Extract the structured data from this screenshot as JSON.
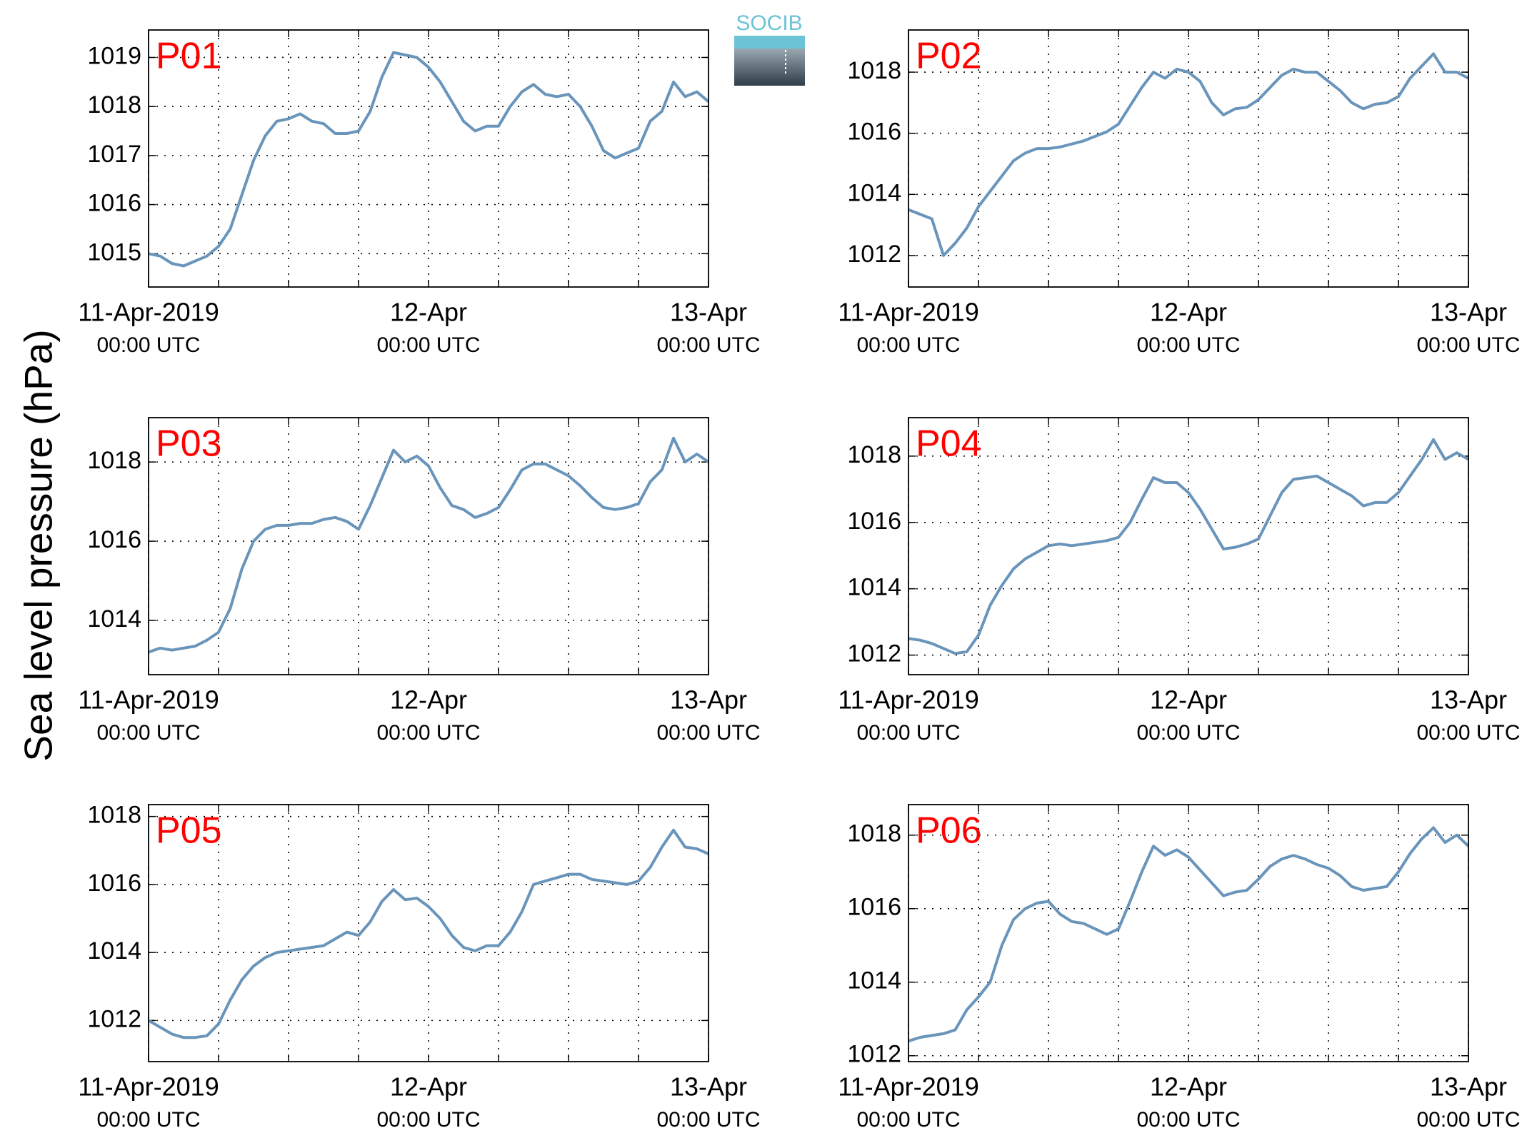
{
  "ylabel": "Sea level pressure (hPa)",
  "logo": "SOCIB",
  "chart_data": [
    {
      "type": "line",
      "title": "P01",
      "color": "#6a95bb",
      "x": [
        "2019-04-11T00:00",
        "2019-04-11T01:00",
        "2019-04-11T02:00",
        "2019-04-11T03:00",
        "2019-04-11T04:00",
        "2019-04-11T05:00",
        "2019-04-11T06:00",
        "2019-04-11T07:00",
        "2019-04-11T08:00",
        "2019-04-11T09:00",
        "2019-04-11T10:00",
        "2019-04-11T11:00",
        "2019-04-11T12:00",
        "2019-04-11T13:00",
        "2019-04-11T14:00",
        "2019-04-11T15:00",
        "2019-04-11T16:00",
        "2019-04-11T17:00",
        "2019-04-11T18:00",
        "2019-04-11T19:00",
        "2019-04-11T20:00",
        "2019-04-11T21:00",
        "2019-04-11T22:00",
        "2019-04-11T23:00",
        "2019-04-12T00:00",
        "2019-04-12T01:00",
        "2019-04-12T02:00",
        "2019-04-12T03:00",
        "2019-04-12T04:00",
        "2019-04-12T05:00",
        "2019-04-12T06:00",
        "2019-04-12T07:00",
        "2019-04-12T08:00",
        "2019-04-12T09:00",
        "2019-04-12T10:00",
        "2019-04-12T11:00",
        "2019-04-12T12:00",
        "2019-04-12T13:00",
        "2019-04-12T14:00",
        "2019-04-12T15:00",
        "2019-04-12T16:00",
        "2019-04-12T17:00",
        "2019-04-12T18:00",
        "2019-04-12T19:00",
        "2019-04-12T20:00",
        "2019-04-12T21:00",
        "2019-04-12T22:00",
        "2019-04-12T23:00",
        "2019-04-13T00:00"
      ],
      "values": [
        1015.0,
        1014.95,
        1014.8,
        1014.75,
        1014.85,
        1014.95,
        1015.15,
        1015.5,
        1016.2,
        1016.9,
        1017.4,
        1017.7,
        1017.75,
        1017.85,
        1017.7,
        1017.65,
        1017.45,
        1017.45,
        1017.5,
        1017.9,
        1018.6,
        1019.1,
        1019.05,
        1019.0,
        1018.8,
        1018.5,
        1018.1,
        1017.7,
        1017.5,
        1017.6,
        1017.6,
        1018.0,
        1018.3,
        1018.45,
        1018.25,
        1018.2,
        1018.25,
        1018.0,
        1017.6,
        1017.1,
        1016.95,
        1017.05,
        1017.15,
        1017.7,
        1017.9,
        1018.5,
        1018.2,
        1018.3,
        1018.1
      ],
      "xlim": [
        "2019-04-11T00:00",
        "2019-04-13T00:00"
      ],
      "xticks": [
        {
          "value": "2019-04-11T00:00",
          "label": "11-Apr-2019",
          "sublabel": "00:00 UTC"
        },
        {
          "value": "2019-04-12T00:00",
          "label": "12-Apr",
          "sublabel": "00:00 UTC"
        },
        {
          "value": "2019-04-13T00:00",
          "label": "13-Apr",
          "sublabel": "00:00 UTC"
        }
      ],
      "xminorticks": [
        "2019-04-11T06:00",
        "2019-04-11T12:00",
        "2019-04-11T18:00",
        "2019-04-12T06:00",
        "2019-04-12T12:00",
        "2019-04-12T18:00"
      ],
      "ylim": [
        1014.32,
        1019.56
      ],
      "yticks": [
        1015,
        1016,
        1017,
        1018,
        1019
      ],
      "grid": true
    },
    {
      "type": "line",
      "title": "P02",
      "color": "#6a95bb",
      "x": [
        "2019-04-11T00:00",
        "2019-04-11T01:00",
        "2019-04-11T02:00",
        "2019-04-11T03:00",
        "2019-04-11T04:00",
        "2019-04-11T05:00",
        "2019-04-11T06:00",
        "2019-04-11T07:00",
        "2019-04-11T08:00",
        "2019-04-11T09:00",
        "2019-04-11T10:00",
        "2019-04-11T11:00",
        "2019-04-11T12:00",
        "2019-04-11T13:00",
        "2019-04-11T14:00",
        "2019-04-11T15:00",
        "2019-04-11T16:00",
        "2019-04-11T17:00",
        "2019-04-11T18:00",
        "2019-04-11T19:00",
        "2019-04-11T20:00",
        "2019-04-11T21:00",
        "2019-04-11T22:00",
        "2019-04-11T23:00",
        "2019-04-12T00:00",
        "2019-04-12T01:00",
        "2019-04-12T02:00",
        "2019-04-12T03:00",
        "2019-04-12T04:00",
        "2019-04-12T05:00",
        "2019-04-12T06:00",
        "2019-04-12T07:00",
        "2019-04-12T08:00",
        "2019-04-12T09:00",
        "2019-04-12T10:00",
        "2019-04-12T11:00",
        "2019-04-12T12:00",
        "2019-04-12T13:00",
        "2019-04-12T14:00",
        "2019-04-12T15:00",
        "2019-04-12T16:00",
        "2019-04-12T17:00",
        "2019-04-12T18:00",
        "2019-04-12T19:00",
        "2019-04-12T20:00",
        "2019-04-12T21:00",
        "2019-04-12T22:00",
        "2019-04-12T23:00",
        "2019-04-13T00:00"
      ],
      "values": [
        1013.5,
        1013.35,
        1013.2,
        1012.0,
        1012.4,
        1012.9,
        1013.6,
        1014.1,
        1014.6,
        1015.1,
        1015.35,
        1015.5,
        1015.5,
        1015.55,
        1015.65,
        1015.75,
        1015.9,
        1016.05,
        1016.3,
        1016.9,
        1017.5,
        1018.0,
        1017.8,
        1018.1,
        1018.0,
        1017.7,
        1017.0,
        1016.6,
        1016.8,
        1016.85,
        1017.1,
        1017.5,
        1017.9,
        1018.1,
        1018.0,
        1018.0,
        1017.7,
        1017.4,
        1017.0,
        1016.8,
        1016.95,
        1017.0,
        1017.2,
        1017.8,
        1018.2,
        1018.6,
        1018.0,
        1018.0,
        1017.8
      ],
      "xlim": [
        "2019-04-11T00:00",
        "2019-04-13T00:00"
      ],
      "xticks": [
        {
          "value": "2019-04-11T00:00",
          "label": "11-Apr-2019",
          "sublabel": "00:00 UTC"
        },
        {
          "value": "2019-04-12T00:00",
          "label": "12-Apr",
          "sublabel": "00:00 UTC"
        },
        {
          "value": "2019-04-13T00:00",
          "label": "13-Apr",
          "sublabel": "00:00 UTC"
        }
      ],
      "xminorticks": [
        "2019-04-11T06:00",
        "2019-04-11T12:00",
        "2019-04-11T18:00",
        "2019-04-12T06:00",
        "2019-04-12T12:00",
        "2019-04-12T18:00"
      ],
      "ylim": [
        1010.97,
        1019.38
      ],
      "yticks": [
        1012,
        1014,
        1016,
        1018
      ],
      "grid": true
    },
    {
      "type": "line",
      "title": "P03",
      "color": "#6a95bb",
      "x": [
        "2019-04-11T00:00",
        "2019-04-11T01:00",
        "2019-04-11T02:00",
        "2019-04-11T03:00",
        "2019-04-11T04:00",
        "2019-04-11T05:00",
        "2019-04-11T06:00",
        "2019-04-11T07:00",
        "2019-04-11T08:00",
        "2019-04-11T09:00",
        "2019-04-11T10:00",
        "2019-04-11T11:00",
        "2019-04-11T12:00",
        "2019-04-11T13:00",
        "2019-04-11T14:00",
        "2019-04-11T15:00",
        "2019-04-11T16:00",
        "2019-04-11T17:00",
        "2019-04-11T18:00",
        "2019-04-11T19:00",
        "2019-04-11T20:00",
        "2019-04-11T21:00",
        "2019-04-11T22:00",
        "2019-04-11T23:00",
        "2019-04-12T00:00",
        "2019-04-12T01:00",
        "2019-04-12T02:00",
        "2019-04-12T03:00",
        "2019-04-12T04:00",
        "2019-04-12T05:00",
        "2019-04-12T06:00",
        "2019-04-12T07:00",
        "2019-04-12T08:00",
        "2019-04-12T09:00",
        "2019-04-12T10:00",
        "2019-04-12T11:00",
        "2019-04-12T12:00",
        "2019-04-12T13:00",
        "2019-04-12T14:00",
        "2019-04-12T15:00",
        "2019-04-12T16:00",
        "2019-04-12T17:00",
        "2019-04-12T18:00",
        "2019-04-12T19:00",
        "2019-04-12T20:00",
        "2019-04-12T21:00",
        "2019-04-12T22:00",
        "2019-04-12T23:00",
        "2019-04-13T00:00"
      ],
      "values": [
        1013.2,
        1013.3,
        1013.25,
        1013.3,
        1013.35,
        1013.5,
        1013.7,
        1014.3,
        1015.3,
        1016.0,
        1016.3,
        1016.4,
        1016.4,
        1016.45,
        1016.45,
        1016.55,
        1016.6,
        1016.5,
        1016.3,
        1016.9,
        1017.6,
        1018.3,
        1018.0,
        1018.15,
        1017.9,
        1017.35,
        1016.9,
        1016.8,
        1016.6,
        1016.7,
        1016.85,
        1017.3,
        1017.8,
        1017.95,
        1017.95,
        1017.8,
        1017.65,
        1017.4,
        1017.1,
        1016.85,
        1016.8,
        1016.85,
        1016.95,
        1017.5,
        1017.8,
        1018.6,
        1018.0,
        1018.2,
        1018.0
      ],
      "xlim": [
        "2019-04-11T00:00",
        "2019-04-13T00:00"
      ],
      "xticks": [
        {
          "value": "2019-04-11T00:00",
          "label": "11-Apr-2019",
          "sublabel": "00:00 UTC"
        },
        {
          "value": "2019-04-12T00:00",
          "label": "12-Apr",
          "sublabel": "00:00 UTC"
        },
        {
          "value": "2019-04-13T00:00",
          "label": "13-Apr",
          "sublabel": "00:00 UTC"
        }
      ],
      "xminorticks": [
        "2019-04-11T06:00",
        "2019-04-11T12:00",
        "2019-04-11T18:00",
        "2019-04-12T06:00",
        "2019-04-12T12:00",
        "2019-04-12T18:00"
      ],
      "ylim": [
        1012.63,
        1019.12
      ],
      "yticks": [
        1014,
        1016,
        1018
      ],
      "grid": true
    },
    {
      "type": "line",
      "title": "P04",
      "color": "#6a95bb",
      "x": [
        "2019-04-11T00:00",
        "2019-04-11T01:00",
        "2019-04-11T02:00",
        "2019-04-11T03:00",
        "2019-04-11T04:00",
        "2019-04-11T05:00",
        "2019-04-11T06:00",
        "2019-04-11T07:00",
        "2019-04-11T08:00",
        "2019-04-11T09:00",
        "2019-04-11T10:00",
        "2019-04-11T11:00",
        "2019-04-11T12:00",
        "2019-04-11T13:00",
        "2019-04-11T14:00",
        "2019-04-11T15:00",
        "2019-04-11T16:00",
        "2019-04-11T17:00",
        "2019-04-11T18:00",
        "2019-04-11T19:00",
        "2019-04-11T20:00",
        "2019-04-11T21:00",
        "2019-04-11T22:00",
        "2019-04-11T23:00",
        "2019-04-12T00:00",
        "2019-04-12T01:00",
        "2019-04-12T02:00",
        "2019-04-12T03:00",
        "2019-04-12T04:00",
        "2019-04-12T05:00",
        "2019-04-12T06:00",
        "2019-04-12T07:00",
        "2019-04-12T08:00",
        "2019-04-12T09:00",
        "2019-04-12T10:00",
        "2019-04-12T11:00",
        "2019-04-12T12:00",
        "2019-04-12T13:00",
        "2019-04-12T14:00",
        "2019-04-12T15:00",
        "2019-04-12T16:00",
        "2019-04-12T17:00",
        "2019-04-12T18:00",
        "2019-04-12T19:00",
        "2019-04-12T20:00",
        "2019-04-12T21:00",
        "2019-04-12T22:00",
        "2019-04-12T23:00",
        "2019-04-13T00:00"
      ],
      "values": [
        1012.5,
        1012.45,
        1012.35,
        1012.2,
        1012.05,
        1012.1,
        1012.6,
        1013.5,
        1014.1,
        1014.6,
        1014.9,
        1015.1,
        1015.3,
        1015.35,
        1015.3,
        1015.35,
        1015.4,
        1015.45,
        1015.55,
        1016.0,
        1016.7,
        1017.35,
        1017.2,
        1017.2,
        1016.9,
        1016.4,
        1015.8,
        1015.2,
        1015.25,
        1015.35,
        1015.5,
        1016.2,
        1016.9,
        1017.3,
        1017.35,
        1017.4,
        1017.2,
        1017.0,
        1016.8,
        1016.5,
        1016.6,
        1016.6,
        1016.9,
        1017.4,
        1017.9,
        1018.5,
        1017.9,
        1018.1,
        1017.9
      ],
      "xlim": [
        "2019-04-11T00:00",
        "2019-04-13T00:00"
      ],
      "xticks": [
        {
          "value": "2019-04-11T00:00",
          "label": "11-Apr-2019",
          "sublabel": "00:00 UTC"
        },
        {
          "value": "2019-04-12T00:00",
          "label": "12-Apr",
          "sublabel": "00:00 UTC"
        },
        {
          "value": "2019-04-13T00:00",
          "label": "13-Apr",
          "sublabel": "00:00 UTC"
        }
      ],
      "xminorticks": [
        "2019-04-11T06:00",
        "2019-04-11T12:00",
        "2019-04-11T18:00",
        "2019-04-12T06:00",
        "2019-04-12T12:00",
        "2019-04-12T18:00"
      ],
      "ylim": [
        1011.41,
        1019.16
      ],
      "yticks": [
        1012,
        1014,
        1016,
        1018
      ],
      "grid": true
    },
    {
      "type": "line",
      "title": "P05",
      "color": "#6a95bb",
      "x": [
        "2019-04-11T00:00",
        "2019-04-11T01:00",
        "2019-04-11T02:00",
        "2019-04-11T03:00",
        "2019-04-11T04:00",
        "2019-04-11T05:00",
        "2019-04-11T06:00",
        "2019-04-11T07:00",
        "2019-04-11T08:00",
        "2019-04-11T09:00",
        "2019-04-11T10:00",
        "2019-04-11T11:00",
        "2019-04-11T12:00",
        "2019-04-11T13:00",
        "2019-04-11T14:00",
        "2019-04-11T15:00",
        "2019-04-11T16:00",
        "2019-04-11T17:00",
        "2019-04-11T18:00",
        "2019-04-11T19:00",
        "2019-04-11T20:00",
        "2019-04-11T21:00",
        "2019-04-11T22:00",
        "2019-04-11T23:00",
        "2019-04-12T00:00",
        "2019-04-12T01:00",
        "2019-04-12T02:00",
        "2019-04-12T03:00",
        "2019-04-12T04:00",
        "2019-04-12T05:00",
        "2019-04-12T06:00",
        "2019-04-12T07:00",
        "2019-04-12T08:00",
        "2019-04-12T09:00",
        "2019-04-12T10:00",
        "2019-04-12T11:00",
        "2019-04-12T12:00",
        "2019-04-12T13:00",
        "2019-04-12T14:00",
        "2019-04-12T15:00",
        "2019-04-12T16:00",
        "2019-04-12T17:00",
        "2019-04-12T18:00",
        "2019-04-12T19:00",
        "2019-04-12T20:00",
        "2019-04-12T21:00",
        "2019-04-12T22:00",
        "2019-04-12T23:00",
        "2019-04-13T00:00"
      ],
      "values": [
        1012.0,
        1011.8,
        1011.6,
        1011.5,
        1011.5,
        1011.55,
        1011.9,
        1012.6,
        1013.2,
        1013.6,
        1013.85,
        1014.0,
        1014.05,
        1014.1,
        1014.15,
        1014.2,
        1014.4,
        1014.6,
        1014.5,
        1014.9,
        1015.5,
        1015.85,
        1015.55,
        1015.6,
        1015.35,
        1015.0,
        1014.5,
        1014.15,
        1014.05,
        1014.2,
        1014.2,
        1014.6,
        1015.2,
        1016.0,
        1016.1,
        1016.2,
        1016.3,
        1016.3,
        1016.15,
        1016.1,
        1016.05,
        1016.0,
        1016.1,
        1016.5,
        1017.1,
        1017.6,
        1017.1,
        1017.05,
        1016.9
      ],
      "xlim": [
        "2019-04-11T00:00",
        "2019-04-13T00:00"
      ],
      "xticks": [
        {
          "value": "2019-04-11T00:00",
          "label": "11-Apr-2019",
          "sublabel": "00:00 UTC"
        },
        {
          "value": "2019-04-12T00:00",
          "label": "12-Apr",
          "sublabel": "00:00 UTC"
        },
        {
          "value": "2019-04-13T00:00",
          "label": "13-Apr",
          "sublabel": "00:00 UTC"
        }
      ],
      "xminorticks": [
        "2019-04-11T06:00",
        "2019-04-11T12:00",
        "2019-04-11T18:00",
        "2019-04-12T06:00",
        "2019-04-12T12:00",
        "2019-04-12T18:00"
      ],
      "ylim": [
        1010.79,
        1018.35
      ],
      "yticks": [
        1012,
        1014,
        1016,
        1018
      ],
      "grid": true
    },
    {
      "type": "line",
      "title": "P06",
      "color": "#6a95bb",
      "x": [
        "2019-04-11T00:00",
        "2019-04-11T01:00",
        "2019-04-11T02:00",
        "2019-04-11T03:00",
        "2019-04-11T04:00",
        "2019-04-11T05:00",
        "2019-04-11T06:00",
        "2019-04-11T07:00",
        "2019-04-11T08:00",
        "2019-04-11T09:00",
        "2019-04-11T10:00",
        "2019-04-11T11:00",
        "2019-04-11T12:00",
        "2019-04-11T13:00",
        "2019-04-11T14:00",
        "2019-04-11T15:00",
        "2019-04-11T16:00",
        "2019-04-11T17:00",
        "2019-04-11T18:00",
        "2019-04-11T19:00",
        "2019-04-11T20:00",
        "2019-04-11T21:00",
        "2019-04-11T22:00",
        "2019-04-11T23:00",
        "2019-04-12T00:00",
        "2019-04-12T01:00",
        "2019-04-12T02:00",
        "2019-04-12T03:00",
        "2019-04-12T04:00",
        "2019-04-12T05:00",
        "2019-04-12T06:00",
        "2019-04-12T07:00",
        "2019-04-12T08:00",
        "2019-04-12T09:00",
        "2019-04-12T10:00",
        "2019-04-12T11:00",
        "2019-04-12T12:00",
        "2019-04-12T13:00",
        "2019-04-12T14:00",
        "2019-04-12T15:00",
        "2019-04-12T16:00",
        "2019-04-12T17:00",
        "2019-04-12T18:00",
        "2019-04-12T19:00",
        "2019-04-12T20:00",
        "2019-04-12T21:00",
        "2019-04-12T22:00",
        "2019-04-12T23:00",
        "2019-04-13T00:00"
      ],
      "values": [
        1012.4,
        1012.5,
        1012.55,
        1012.6,
        1012.7,
        1013.25,
        1013.6,
        1014.0,
        1015.0,
        1015.7,
        1016.0,
        1016.15,
        1016.2,
        1015.85,
        1015.65,
        1015.6,
        1015.45,
        1015.3,
        1015.45,
        1016.2,
        1017.0,
        1017.7,
        1017.45,
        1017.6,
        1017.4,
        1017.05,
        1016.7,
        1016.35,
        1016.45,
        1016.5,
        1016.8,
        1017.15,
        1017.35,
        1017.45,
        1017.35,
        1017.2,
        1017.1,
        1016.9,
        1016.6,
        1016.5,
        1016.55,
        1016.6,
        1017.0,
        1017.5,
        1017.9,
        1018.2,
        1017.8,
        1018.0,
        1017.7
      ],
      "xlim": [
        "2019-04-11T00:00",
        "2019-04-13T00:00"
      ],
      "xticks": [
        {
          "value": "2019-04-11T00:00",
          "label": "11-Apr-2019",
          "sublabel": "00:00 UTC"
        },
        {
          "value": "2019-04-12T00:00",
          "label": "12-Apr",
          "sublabel": "00:00 UTC"
        },
        {
          "value": "2019-04-13T00:00",
          "label": "13-Apr",
          "sublabel": "00:00 UTC"
        }
      ],
      "xminorticks": [
        "2019-04-11T06:00",
        "2019-04-11T12:00",
        "2019-04-11T18:00",
        "2019-04-12T06:00",
        "2019-04-12T12:00",
        "2019-04-12T18:00"
      ],
      "ylim": [
        1011.84,
        1018.83
      ],
      "yticks": [
        1012,
        1014,
        1016,
        1018
      ],
      "grid": true
    }
  ]
}
